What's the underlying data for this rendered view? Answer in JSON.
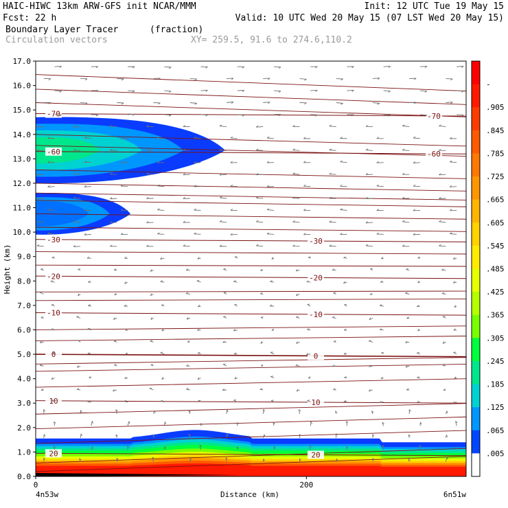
{
  "header": {
    "left1": "HAIC-HIWC 13km ARW-GFS init   NCAR/MMM",
    "right1": "Init: 12 UTC Tue 19 May 15",
    "left2": "Fcst:   22 h",
    "right2": "Valid: 10 UTC Wed 20 May 15 (07 LST Wed 20 May 15)",
    "field_name": "Boundary Layer Tracer",
    "field_units": "(fraction)",
    "vector_label": "Circulation vectors",
    "xy_label": "XY= 259.5, 91.6 to 274.6,110.2"
  },
  "axes": {
    "ylabel": "Height (km)",
    "xlabel": "Distance (km)",
    "left_endpoint": "4n53w",
    "right_endpoint": "6n51w",
    "yticks": [
      "0.0",
      "1.0",
      "2.0",
      "3.0",
      "4.0",
      "5.0",
      "6.0",
      "7.0",
      "8.0",
      "9.0",
      "10.0",
      "11.0",
      "12.0",
      "13.0",
      "14.0",
      "15.0",
      "16.0",
      "17.0"
    ],
    "xticks": [
      "0",
      "200"
    ]
  },
  "colorbar": {
    "labels": [
      "-",
      ".905",
      ".845",
      ".785",
      ".725",
      ".665",
      ".605",
      ".545",
      ".485",
      ".425",
      ".365",
      ".305",
      ".245",
      ".185",
      ".125",
      ".065",
      ".005"
    ],
    "colors": [
      "#ff0000",
      "#ff1a00",
      "#ff3c00",
      "#ff5a00",
      "#ff7800",
      "#ff9600",
      "#ffb400",
      "#ffd200",
      "#ffeb00",
      "#e6ff00",
      "#b4ff00",
      "#78ff00",
      "#00ff3c",
      "#00e68c",
      "#00d2d2",
      "#0096ff",
      "#0046ff",
      "#ffffff"
    ]
  },
  "chart_data": {
    "type": "heatmap",
    "title": "Boundary Layer Tracer",
    "units": "(fraction)",
    "xlabel": "Distance (km)",
    "ylabel": "Height (km)",
    "xlim": [
      0,
      318
    ],
    "ylim": [
      0,
      17
    ],
    "tracer_regions": [
      {
        "name": "boundary layer",
        "height_km": [
          0.0,
          1.95
        ],
        "x_km": [
          0,
          318
        ],
        "max_value": 0.95
      },
      {
        "name": "upper layer 1",
        "height_km": [
          12.0,
          14.7
        ],
        "x_km": [
          0,
          140
        ],
        "max_value": 0.3
      },
      {
        "name": "upper layer 2",
        "height_km": [
          9.9,
          11.6
        ],
        "x_km": [
          0,
          70
        ],
        "max_value": 0.15
      }
    ],
    "temperature_contours": [
      {
        "label": "-70",
        "height_km": 14.85
      },
      {
        "label": "-60",
        "height_km": 13.3
      },
      {
        "label": "-30",
        "height_km": 9.7
      },
      {
        "label": "-20",
        "height_km": 8.2
      },
      {
        "label": "-10",
        "height_km": 6.7
      },
      {
        "label": "0",
        "height_km": 5.0
      },
      {
        "label": "10",
        "height_km": 3.1
      },
      {
        "label": "20",
        "height_km": 0.95
      }
    ],
    "vectors": "circulation vectors (gray arrows), mostly westward flow aloft"
  }
}
